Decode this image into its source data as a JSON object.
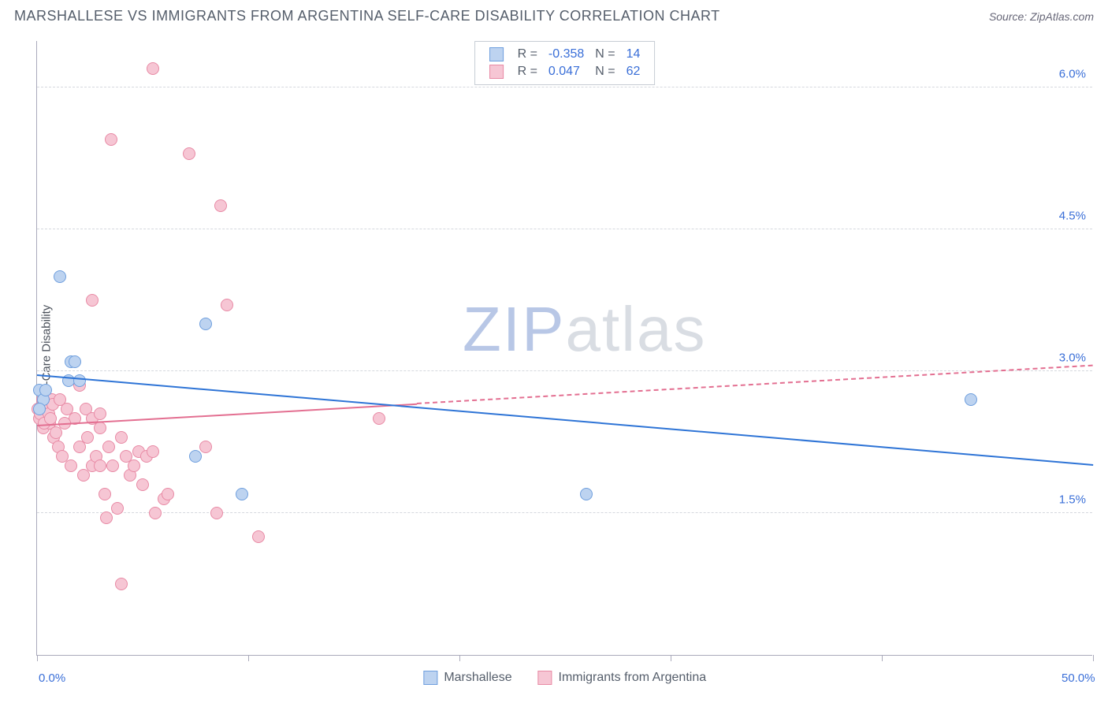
{
  "header": {
    "title": "MARSHALLESE VS IMMIGRANTS FROM ARGENTINA SELF-CARE DISABILITY CORRELATION CHART",
    "source_label": "Source:",
    "source_value": "ZipAtlas.com"
  },
  "axes": {
    "ylabel": "Self-Care Disability",
    "xmin": 0,
    "xmax": 50,
    "ymin": 0,
    "ymax": 6.5,
    "x_ticks": [
      0,
      10,
      20,
      30,
      40,
      50
    ],
    "x_tick_labels_shown": {
      "0": "0.0%",
      "50": "50.0%"
    },
    "y_gridlines": [
      1.5,
      3.0,
      4.5,
      6.0
    ],
    "y_tick_labels": {
      "1.5": "1.5%",
      "3.0": "3.0%",
      "4.5": "4.5%",
      "6.0": "6.0%"
    },
    "grid_color": "#d5d8de",
    "axis_color": "#aab0bb",
    "tick_color": "#3a6fd8",
    "label_color": "#4a505a"
  },
  "watermark": {
    "text_a": "ZIP",
    "text_b": "atlas",
    "fontsize": 80
  },
  "series": {
    "marshallese": {
      "label": "Marshallese",
      "fill": "#bdd3f0",
      "stroke": "#6f9fde",
      "line": "#2e74d6",
      "R": "-0.358",
      "N": "14",
      "marker_radius": 8,
      "points": [
        [
          0.1,
          2.8
        ],
        [
          0.3,
          2.7
        ],
        [
          0.4,
          2.8
        ],
        [
          1.1,
          4.0
        ],
        [
          1.5,
          2.9
        ],
        [
          1.6,
          3.1
        ],
        [
          2.0,
          2.9
        ],
        [
          8.0,
          3.5
        ],
        [
          7.5,
          2.1
        ],
        [
          9.7,
          1.7
        ],
        [
          26.0,
          1.7
        ],
        [
          44.2,
          2.7
        ],
        [
          0.1,
          2.6
        ],
        [
          1.8,
          3.1
        ]
      ],
      "trend": {
        "x1": 0,
        "y1": 2.95,
        "x2": 50,
        "y2": 2.0,
        "dash_after_x": 50
      }
    },
    "argentina": {
      "label": "Immigrants from Argentina",
      "fill": "#f6c6d4",
      "stroke": "#e88aa5",
      "line": "#e36f91",
      "R": "0.047",
      "N": "62",
      "marker_radius": 8,
      "points": [
        [
          0.1,
          2.5
        ],
        [
          0.2,
          2.6
        ],
        [
          0.3,
          2.4
        ],
        [
          0.4,
          2.55
        ],
        [
          0.5,
          2.65
        ],
        [
          0.6,
          2.45
        ],
        [
          0.7,
          2.7
        ],
        [
          0.8,
          2.3
        ],
        [
          0.05,
          2.6
        ],
        [
          0.15,
          2.55
        ],
        [
          0.25,
          2.7
        ],
        [
          0.35,
          2.45
        ],
        [
          0.45,
          2.6
        ],
        [
          0.55,
          2.55
        ],
        [
          0.65,
          2.5
        ],
        [
          0.75,
          2.65
        ],
        [
          1.0,
          2.2
        ],
        [
          1.2,
          2.1
        ],
        [
          1.4,
          2.6
        ],
        [
          1.6,
          2.0
        ],
        [
          1.8,
          2.5
        ],
        [
          2.0,
          2.2
        ],
        [
          2.2,
          1.9
        ],
        [
          2.4,
          2.3
        ],
        [
          2.6,
          2.0
        ],
        [
          2.8,
          2.1
        ],
        [
          3.0,
          2.4
        ],
        [
          3.2,
          1.7
        ],
        [
          3.4,
          2.2
        ],
        [
          3.6,
          2.0
        ],
        [
          3.8,
          1.55
        ],
        [
          4.0,
          2.3
        ],
        [
          4.2,
          2.1
        ],
        [
          4.4,
          1.9
        ],
        [
          4.6,
          2.0
        ],
        [
          4.8,
          2.15
        ],
        [
          5.0,
          1.8
        ],
        [
          5.2,
          2.1
        ],
        [
          5.6,
          1.5
        ],
        [
          6.0,
          1.65
        ],
        [
          2.0,
          2.85
        ],
        [
          2.3,
          2.6
        ],
        [
          2.6,
          2.5
        ],
        [
          3.0,
          2.55
        ],
        [
          5.5,
          2.15
        ],
        [
          6.2,
          1.7
        ],
        [
          2.6,
          3.75
        ],
        [
          3.3,
          1.45
        ],
        [
          4.0,
          0.75
        ],
        [
          8.0,
          2.2
        ],
        [
          8.7,
          4.75
        ],
        [
          9.0,
          3.7
        ],
        [
          8.5,
          1.5
        ],
        [
          10.5,
          1.25
        ],
        [
          5.5,
          6.2
        ],
        [
          3.5,
          5.45
        ],
        [
          7.2,
          5.3
        ],
        [
          16.2,
          2.5
        ],
        [
          3.0,
          2.0
        ],
        [
          0.9,
          2.35
        ],
        [
          1.1,
          2.7
        ],
        [
          1.3,
          2.45
        ]
      ],
      "trend": {
        "x1": 0,
        "y1": 2.42,
        "x2": 50,
        "y2": 3.05,
        "dash_after_x": 18
      }
    }
  },
  "legend_top": {
    "R_label": "R =",
    "N_label": "N ="
  }
}
